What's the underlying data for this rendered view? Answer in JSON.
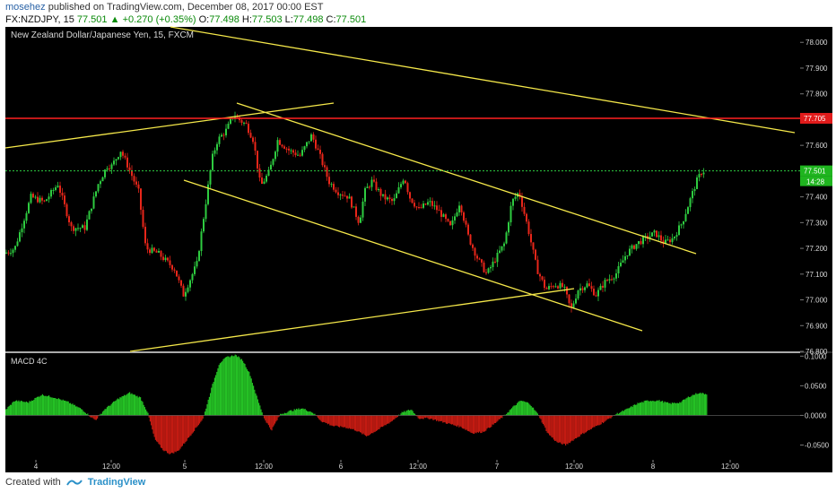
{
  "header": {
    "author": "mosehez",
    "published_text": "published on TradingView.com, December 08, 2017 00:00 EST",
    "symbol": "FX:NZDJPY, 15",
    "last_price": "77.501",
    "change": "+0.270 (+0.35%)",
    "ohlc": {
      "o_label": "O:",
      "o": "77.498",
      "h_label": "H:",
      "h": "77.503",
      "l_label": "L:",
      "l": "77.498",
      "c_label": "C:",
      "c": "77.501"
    }
  },
  "footer": {
    "created_with": "Created with",
    "brand": "TradingView"
  },
  "colors": {
    "background": "#000000",
    "up": "#2ecc40",
    "down": "#e8261a",
    "trendline": "#f5e84a",
    "resistance": "#ff2020",
    "price_line": "#2ecc40",
    "axis_text": "#d8d8d8"
  },
  "chart_data": [
    {
      "type": "candlestick",
      "title": "New Zealand Dollar/Japanese Yen, 15, FXCM",
      "x_axis_labels": [
        "4",
        "12:00",
        "5",
        "12:00",
        "6",
        "12:00",
        "7",
        "12:00",
        "8",
        "12:00"
      ],
      "y_ticks": [
        "78.000",
        "77.900",
        "77.800",
        "77.700",
        "77.600",
        "77.500",
        "77.400",
        "77.300",
        "77.200",
        "77.100",
        "77.000",
        "76.900",
        "76.800"
      ],
      "ylim": [
        76.8,
        78.06
      ],
      "approx_close_path": [
        [
          0,
          77.18
        ],
        [
          12,
          77.2
        ],
        [
          30,
          77.4
        ],
        [
          45,
          77.38
        ],
        [
          60,
          77.45
        ],
        [
          75,
          77.28
        ],
        [
          90,
          77.28
        ],
        [
          105,
          77.45
        ],
        [
          115,
          77.52
        ],
        [
          120,
          77.52
        ],
        [
          130,
          77.58
        ],
        [
          138,
          77.52
        ],
        [
          150,
          77.42
        ],
        [
          158,
          77.2
        ],
        [
          172,
          77.18
        ],
        [
          190,
          77.12
        ],
        [
          200,
          77.02
        ],
        [
          215,
          77.14
        ],
        [
          225,
          77.38
        ],
        [
          232,
          77.55
        ],
        [
          238,
          77.62
        ],
        [
          248,
          77.66
        ],
        [
          256,
          77.72
        ],
        [
          262,
          77.7
        ],
        [
          270,
          77.68
        ],
        [
          278,
          77.62
        ],
        [
          286,
          77.44
        ],
        [
          296,
          77.5
        ],
        [
          305,
          77.62
        ],
        [
          318,
          77.58
        ],
        [
          330,
          77.56
        ],
        [
          343,
          77.64
        ],
        [
          352,
          77.56
        ],
        [
          362,
          77.46
        ],
        [
          372,
          77.42
        ],
        [
          384,
          77.4
        ],
        [
          396,
          77.3
        ],
        [
          402,
          77.42
        ],
        [
          410,
          77.46
        ],
        [
          422,
          77.4
        ],
        [
          434,
          77.38
        ],
        [
          446,
          77.48
        ],
        [
          452,
          77.4
        ],
        [
          462,
          77.35
        ],
        [
          474,
          77.38
        ],
        [
          486,
          77.34
        ],
        [
          498,
          77.28
        ],
        [
          508,
          77.38
        ],
        [
          518,
          77.24
        ],
        [
          528,
          77.16
        ],
        [
          538,
          77.1
        ],
        [
          548,
          77.16
        ],
        [
          558,
          77.22
        ],
        [
          566,
          77.38
        ],
        [
          574,
          77.42
        ],
        [
          584,
          77.28
        ],
        [
          594,
          77.12
        ],
        [
          604,
          77.04
        ],
        [
          614,
          77.06
        ],
        [
          624,
          77.05
        ],
        [
          632,
          76.96
        ],
        [
          640,
          77.04
        ],
        [
          650,
          77.06
        ],
        [
          660,
          77.02
        ],
        [
          670,
          77.07
        ],
        [
          682,
          77.1
        ],
        [
          694,
          77.18
        ],
        [
          706,
          77.22
        ],
        [
          716,
          77.24
        ],
        [
          726,
          77.26
        ],
        [
          736,
          77.22
        ],
        [
          746,
          77.24
        ],
        [
          756,
          77.3
        ],
        [
          764,
          77.38
        ],
        [
          772,
          77.46
        ],
        [
          778,
          77.5
        ]
      ],
      "horizontal_levels": [
        {
          "value": 77.705,
          "label": "77.705",
          "color": "red"
        },
        {
          "value": 77.501,
          "label": "77.501",
          "color": "green",
          "countdown": "14:28"
        }
      ]
    },
    {
      "type": "bar",
      "title": "MACD 4C",
      "y_ticks": [
        "0.1000",
        "0.0500",
        "0.0000",
        "-0.0500"
      ],
      "ylim": [
        -0.075,
        0.105
      ],
      "histogram_points": [
        [
          0,
          0.01
        ],
        [
          10,
          0.025
        ],
        [
          25,
          0.022
        ],
        [
          40,
          0.035
        ],
        [
          55,
          0.03
        ],
        [
          70,
          0.022
        ],
        [
          85,
          0.01
        ],
        [
          95,
          -0.003
        ],
        [
          100,
          -0.008
        ],
        [
          110,
          0.01
        ],
        [
          125,
          0.028
        ],
        [
          138,
          0.038
        ],
        [
          150,
          0.03
        ],
        [
          158,
          0.005
        ],
        [
          166,
          -0.04
        ],
        [
          175,
          -0.058
        ],
        [
          183,
          -0.065
        ],
        [
          192,
          -0.06
        ],
        [
          200,
          -0.045
        ],
        [
          210,
          -0.025
        ],
        [
          220,
          -0.005
        ],
        [
          230,
          0.05
        ],
        [
          238,
          0.088
        ],
        [
          246,
          0.098
        ],
        [
          256,
          0.102
        ],
        [
          264,
          0.093
        ],
        [
          272,
          0.07
        ],
        [
          280,
          0.03
        ],
        [
          288,
          -0.005
        ],
        [
          296,
          -0.025
        ],
        [
          306,
          0.002
        ],
        [
          318,
          0.008
        ],
        [
          330,
          0.012
        ],
        [
          342,
          0.005
        ],
        [
          352,
          -0.01
        ],
        [
          365,
          -0.018
        ],
        [
          378,
          -0.02
        ],
        [
          390,
          -0.025
        ],
        [
          402,
          -0.035
        ],
        [
          414,
          -0.025
        ],
        [
          430,
          -0.01
        ],
        [
          442,
          0.005
        ],
        [
          452,
          0.01
        ],
        [
          460,
          -0.005
        ],
        [
          472,
          -0.005
        ],
        [
          484,
          -0.01
        ],
        [
          496,
          -0.015
        ],
        [
          508,
          -0.02
        ],
        [
          520,
          -0.03
        ],
        [
          532,
          -0.028
        ],
        [
          544,
          -0.015
        ],
        [
          556,
          0.0
        ],
        [
          566,
          0.015
        ],
        [
          574,
          0.025
        ],
        [
          584,
          0.02
        ],
        [
          594,
          0.0
        ],
        [
          604,
          -0.03
        ],
        [
          614,
          -0.045
        ],
        [
          624,
          -0.05
        ],
        [
          634,
          -0.04
        ],
        [
          644,
          -0.03
        ],
        [
          656,
          -0.02
        ],
        [
          668,
          -0.01
        ],
        [
          680,
          0.002
        ],
        [
          692,
          0.01
        ],
        [
          704,
          0.02
        ],
        [
          716,
          0.025
        ],
        [
          728,
          0.025
        ],
        [
          740,
          0.02
        ],
        [
          752,
          0.022
        ],
        [
          762,
          0.032
        ],
        [
          772,
          0.038
        ],
        [
          782,
          0.036
        ]
      ]
    }
  ]
}
